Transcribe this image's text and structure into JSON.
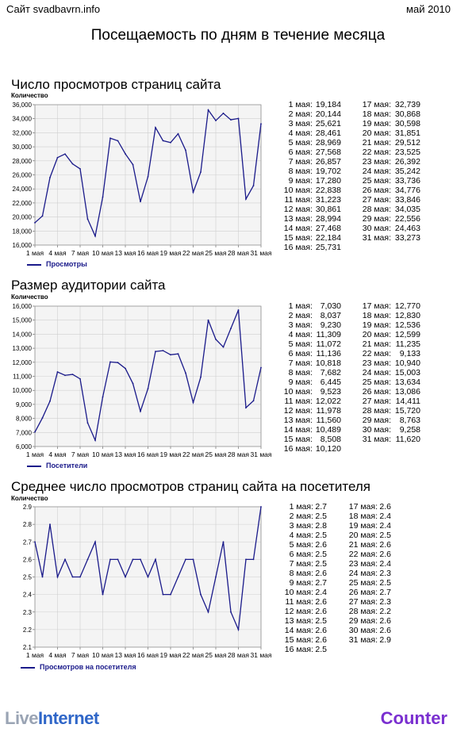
{
  "header": {
    "site": "Сайт svadbavrn.info",
    "date": "май 2010",
    "title": "Посещаемость по дням в течение месяца"
  },
  "footer": {
    "left_part1": "Live",
    "left_part2": "Internet",
    "right": "Counter"
  },
  "x_tick_labels": [
    "1 мая",
    "4 мая",
    "7 мая",
    "10 мая",
    "13 мая",
    "16 мая",
    "19 мая",
    "22 мая",
    "25 мая",
    "28 мая",
    "31 мая"
  ],
  "chart_data": [
    {
      "type": "line",
      "title": "Число просмотров страниц сайта",
      "ylabel": "Количество",
      "legend": "Просмотры",
      "x": [
        1,
        2,
        3,
        4,
        5,
        6,
        7,
        8,
        9,
        10,
        11,
        12,
        13,
        14,
        15,
        16,
        17,
        18,
        19,
        20,
        21,
        22,
        23,
        24,
        25,
        26,
        27,
        28,
        29,
        30,
        31
      ],
      "ylim": [
        16000,
        36000
      ],
      "yticks": [
        16000,
        18000,
        20000,
        22000,
        24000,
        26000,
        28000,
        30000,
        32000,
        34000,
        36000
      ],
      "ytick_labels": [
        "16,000",
        "18,000",
        "20,000",
        "22,000",
        "24,000",
        "26,000",
        "28,000",
        "30,000",
        "32,000",
        "34,000",
        "36,000"
      ],
      "values": [
        19184,
        20144,
        25621,
        28461,
        28969,
        27568,
        26857,
        19702,
        17280,
        22838,
        31223,
        30861,
        28994,
        27468,
        22184,
        25731,
        32739,
        30868,
        30598,
        31851,
        29512,
        23525,
        26392,
        35242,
        33736,
        34776,
        33846,
        34035,
        22556,
        24463,
        33273
      ],
      "labels": [
        "19,184",
        "20,144",
        "25,621",
        "28,461",
        "28,969",
        "27,568",
        "26,857",
        "19,702",
        "17,280",
        "22,838",
        "31,223",
        "30,861",
        "28,994",
        "27,468",
        "22,184",
        "25,731",
        "32,739",
        "30,868",
        "30,598",
        "31,851",
        "29,512",
        "23,525",
        "26,392",
        "35,242",
        "33,736",
        "34,776",
        "33,846",
        "34,035",
        "22,556",
        "24,463",
        "33,273"
      ],
      "grid": true,
      "color": "#1a1a8a"
    },
    {
      "type": "line",
      "title": "Размер аудитории сайта",
      "ylabel": "Количество",
      "legend": "Посетители",
      "x": [
        1,
        2,
        3,
        4,
        5,
        6,
        7,
        8,
        9,
        10,
        11,
        12,
        13,
        14,
        15,
        16,
        17,
        18,
        19,
        20,
        21,
        22,
        23,
        24,
        25,
        26,
        27,
        28,
        29,
        30,
        31
      ],
      "ylim": [
        6000,
        16000
      ],
      "yticks": [
        6000,
        7000,
        8000,
        9000,
        10000,
        11000,
        12000,
        13000,
        14000,
        15000,
        16000
      ],
      "ytick_labels": [
        "6,000",
        "7,000",
        "8,000",
        "9,000",
        "10,000",
        "11,000",
        "12,000",
        "13,000",
        "14,000",
        "15,000",
        "16,000"
      ],
      "values": [
        7030,
        8037,
        9230,
        11309,
        11072,
        11136,
        10818,
        7682,
        6445,
        9523,
        12022,
        11978,
        11560,
        10489,
        8508,
        10120,
        12770,
        12830,
        12536,
        12599,
        11235,
        9133,
        10940,
        15003,
        13634,
        13086,
        14411,
        15720,
        8763,
        9258,
        11620
      ],
      "labels": [
        "7,030",
        "8,037",
        "9,230",
        "11,309",
        "11,072",
        "11,136",
        "10,818",
        "7,682",
        "6,445",
        "9,523",
        "12,022",
        "11,978",
        "11,560",
        "10,489",
        "8,508",
        "10,120",
        "12,770",
        "12,830",
        "12,536",
        "12,599",
        "11,235",
        "9,133",
        "10,940",
        "15,003",
        "13,634",
        "13,086",
        "14,411",
        "15,720",
        "8,763",
        "9,258",
        "11,620"
      ],
      "grid": true,
      "color": "#1a1a8a"
    },
    {
      "type": "line",
      "title": "Среднее число просмотров страниц сайта на посетителя",
      "ylabel": "Количество",
      "legend": "Просмотров на посетителя",
      "x": [
        1,
        2,
        3,
        4,
        5,
        6,
        7,
        8,
        9,
        10,
        11,
        12,
        13,
        14,
        15,
        16,
        17,
        18,
        19,
        20,
        21,
        22,
        23,
        24,
        25,
        26,
        27,
        28,
        29,
        30,
        31
      ],
      "ylim": [
        2.1,
        2.9
      ],
      "yticks": [
        2.1,
        2.2,
        2.3,
        2.4,
        2.5,
        2.6,
        2.7,
        2.8,
        2.9
      ],
      "ytick_labels": [
        "2.1",
        "2.2",
        "2.3",
        "2.4",
        "2.5",
        "2.6",
        "2.7",
        "2.8",
        "2.9"
      ],
      "values": [
        2.7,
        2.5,
        2.8,
        2.5,
        2.6,
        2.5,
        2.5,
        2.6,
        2.7,
        2.4,
        2.6,
        2.6,
        2.5,
        2.6,
        2.6,
        2.5,
        2.6,
        2.4,
        2.4,
        2.5,
        2.6,
        2.6,
        2.4,
        2.3,
        2.5,
        2.7,
        2.3,
        2.2,
        2.6,
        2.6,
        2.9
      ],
      "labels": [
        "2.7",
        "2.5",
        "2.8",
        "2.5",
        "2.6",
        "2.5",
        "2.5",
        "2.6",
        "2.7",
        "2.4",
        "2.6",
        "2.6",
        "2.5",
        "2.6",
        "2.6",
        "2.5",
        "2.6",
        "2.4",
        "2.4",
        "2.5",
        "2.6",
        "2.6",
        "2.4",
        "2.3",
        "2.5",
        "2.7",
        "2.3",
        "2.2",
        "2.6",
        "2.6",
        "2.9"
      ],
      "grid": true,
      "color": "#1a1a8a"
    }
  ],
  "day_labels": [
    "1 мая:",
    "2 мая:",
    "3 мая:",
    "4 мая:",
    "5 мая:",
    "6 мая:",
    "7 мая:",
    "8 мая:",
    "9 мая:",
    "10 мая:",
    "11 мая:",
    "12 мая:",
    "13 мая:",
    "14 мая:",
    "15 мая:",
    "16 мая:",
    "17 мая:",
    "18 мая:",
    "19 мая:",
    "20 мая:",
    "21 мая:",
    "22 мая:",
    "23 мая:",
    "24 мая:",
    "25 мая:",
    "26 мая:",
    "27 мая:",
    "28 мая:",
    "29 мая:",
    "30 мая:",
    "31 мая:"
  ]
}
